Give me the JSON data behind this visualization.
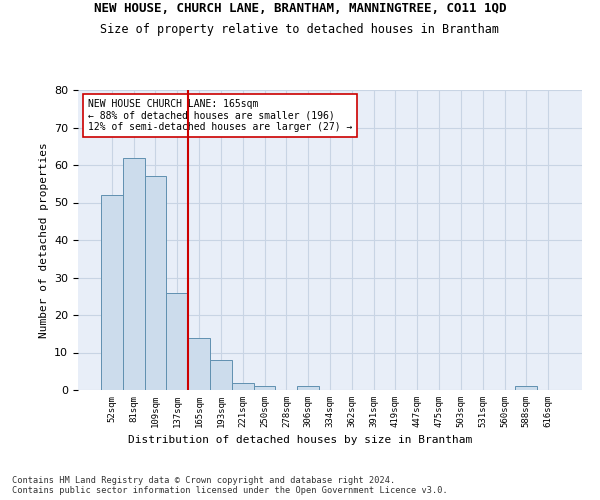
{
  "title": "NEW HOUSE, CHURCH LANE, BRANTHAM, MANNINGTREE, CO11 1QD",
  "subtitle": "Size of property relative to detached houses in Brantham",
  "xlabel": "Distribution of detached houses by size in Brantham",
  "ylabel": "Number of detached properties",
  "categories": [
    "52sqm",
    "81sqm",
    "109sqm",
    "137sqm",
    "165sqm",
    "193sqm",
    "221sqm",
    "250sqm",
    "278sqm",
    "306sqm",
    "334sqm",
    "362sqm",
    "391sqm",
    "419sqm",
    "447sqm",
    "475sqm",
    "503sqm",
    "531sqm",
    "560sqm",
    "588sqm",
    "616sqm"
  ],
  "values": [
    52,
    62,
    57,
    26,
    14,
    8,
    2,
    1,
    0,
    1,
    0,
    0,
    0,
    0,
    0,
    0,
    0,
    0,
    0,
    1,
    0
  ],
  "bar_color": "#ccdcec",
  "bar_edge_color": "#6090b0",
  "ref_line_color": "#cc0000",
  "annotation_text": "NEW HOUSE CHURCH LANE: 165sqm\n← 88% of detached houses are smaller (196)\n12% of semi-detached houses are larger (27) →",
  "annotation_box_color": "#ffffff",
  "annotation_box_edge_color": "#cc0000",
  "ylim": [
    0,
    80
  ],
  "yticks": [
    0,
    10,
    20,
    30,
    40,
    50,
    60,
    70,
    80
  ],
  "grid_color": "#c8d4e4",
  "footnote": "Contains HM Land Registry data © Crown copyright and database right 2024.\nContains public sector information licensed under the Open Government Licence v3.0.",
  "bg_color": "#e8eef8",
  "title_fontsize": 9,
  "subtitle_fontsize": 8.5
}
